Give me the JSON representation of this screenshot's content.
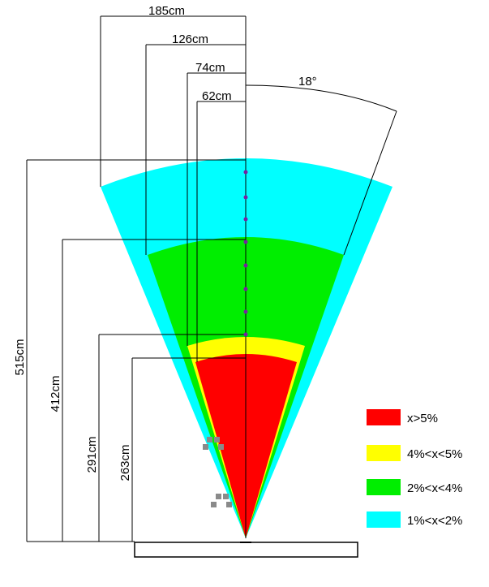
{
  "diagram": {
    "angle_label": "18°",
    "horizontal_dimensions": [
      "185cm",
      "126cm",
      "74cm",
      "62cm"
    ],
    "vertical_dimensions": [
      "515cm",
      "412cm",
      "291cm",
      "263cm"
    ],
    "zone_colors": {
      "over5": "#ff0000",
      "4to5": "#ffff00",
      "2to4": "#00ee00",
      "1to2": "#00ffff"
    },
    "marker_color": "#7a1fa2"
  },
  "legend": {
    "items": [
      {
        "label": "x>5%",
        "color": "#ff0000"
      },
      {
        "label": "4%<x<5%",
        "color": "#ffff00"
      },
      {
        "label": "2%<x<4%",
        "color": "#00ee00"
      },
      {
        "label": "1%<x<2%",
        "color": "#00ffff"
      }
    ]
  }
}
